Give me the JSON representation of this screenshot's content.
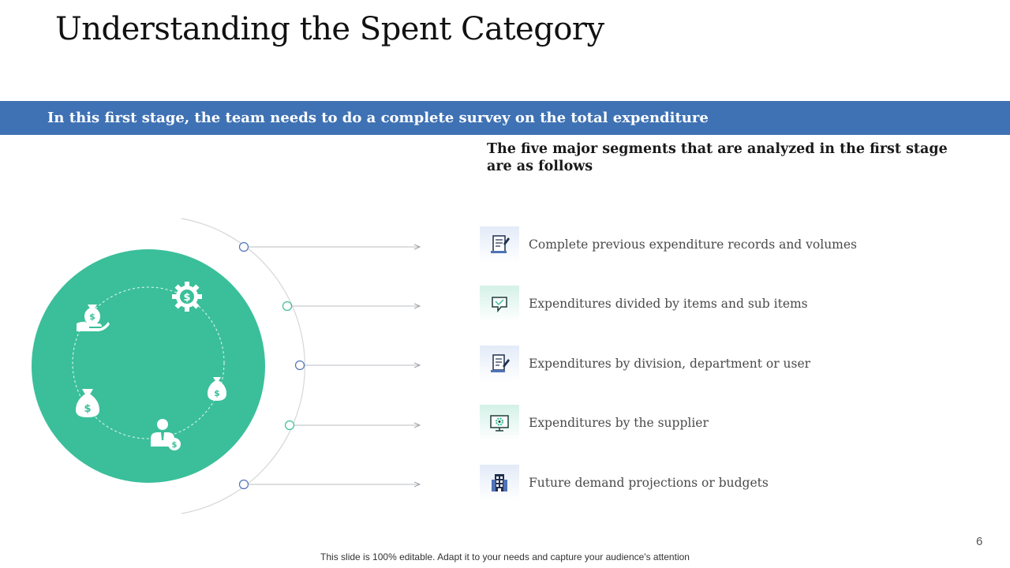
{
  "title": "Understanding the Spent Category",
  "banner": {
    "text": "In this first stage, the team needs to do a complete survey on the total expenditure"
  },
  "subheading": "The five major segments that are analyzed in the first stage are as follows",
  "colors": {
    "banner": "#3f72b4",
    "circle": "#3abf9a",
    "accent_blue": "#4f73b8",
    "accent_green": "#3abf9a"
  },
  "circle_icons": [
    {
      "icon": "hand-money-bag-icon"
    },
    {
      "icon": "dollar-gear-icon"
    },
    {
      "icon": "money-bag-icon"
    },
    {
      "icon": "businessman-dollar-icon"
    },
    {
      "icon": "money-bag-large-icon"
    }
  ],
  "segments": [
    {
      "label": "Complete previous expenditure records and volumes",
      "icon": "document-pen-icon",
      "accent": "blue"
    },
    {
      "label": "Expenditures divided by items and sub items",
      "icon": "chat-bubble-icon",
      "accent": "green"
    },
    {
      "label": "Expenditures by division, department or user",
      "icon": "document-edit-icon",
      "accent": "blue"
    },
    {
      "label": "Expenditures by the supplier",
      "icon": "monitor-gear-icon",
      "accent": "green"
    },
    {
      "label": "Future demand projections or budgets",
      "icon": "building-icon",
      "accent": "blue"
    }
  ],
  "page_number": "6",
  "footer": "This slide is 100% editable. Adapt it to your needs and capture your audience's attention"
}
